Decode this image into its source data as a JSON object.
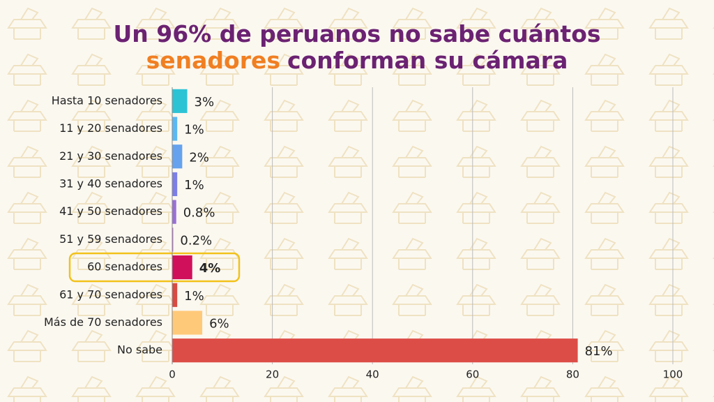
{
  "chart_data": {
    "type": "bar",
    "orientation": "horizontal",
    "title_parts": [
      "Un 96% de peruanos no sabe cuántos",
      "senadores",
      "conforman su cámara"
    ],
    "title_colors": [
      "#6b2272",
      "#f07f22",
      "#6b2272"
    ],
    "categories": [
      "Hasta 10 senadores",
      "11 y 20 senadores",
      "21 y 30 senadores",
      "31 y 40 senadores",
      "41 y 50 senadores",
      "51 y 59 senadores",
      "60 senadores",
      "61 y 70 senadores",
      "Más de 70 senadores",
      "No sabe"
    ],
    "values": [
      3,
      1,
      2,
      1,
      0.8,
      0.2,
      4,
      1,
      6,
      81
    ],
    "value_labels": [
      "3%",
      "1%",
      "2%",
      "1%",
      "0.8%",
      "0.2%",
      "4%",
      "1%",
      "6%",
      "81%"
    ],
    "colors": [
      "#2cc3d5",
      "#5bb8f2",
      "#66a2ee",
      "#7d7fe6",
      "#9a6fd6",
      "#b46fc8",
      "#d0105a",
      "#d94a42",
      "#ffc97a",
      "#dd4d47"
    ],
    "highlight_index": 6,
    "highlight_color": "#f2c21b",
    "xlim": [
      0,
      100
    ],
    "xticks": [
      0,
      20,
      40,
      60,
      80,
      100
    ],
    "grid": true
  }
}
